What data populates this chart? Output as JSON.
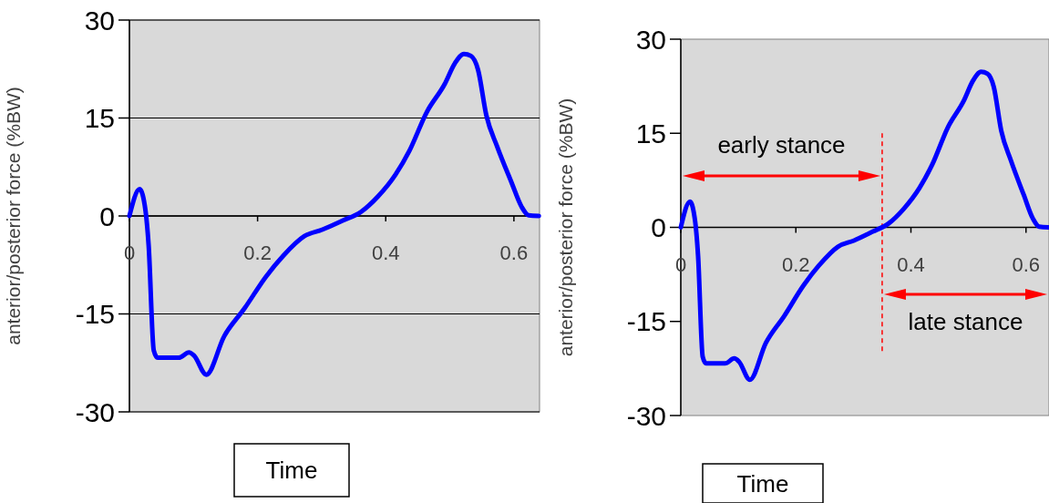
{
  "chart_data": [
    {
      "type": "line",
      "xlabel": "Time",
      "ylabel": "anterior/posterior force (%BW)",
      "x": [
        0,
        0.016,
        0.025,
        0.03,
        0.038,
        0.044,
        0.077,
        0.093,
        0.101,
        0.12,
        0.148,
        0.18,
        0.213,
        0.24,
        0.273,
        0.301,
        0.333,
        0.361,
        0.388,
        0.415,
        0.437,
        0.464,
        0.492,
        0.508,
        0.522,
        0.533,
        0.544,
        0.557,
        0.574,
        0.596,
        0.612,
        0.623,
        0.639
      ],
      "series": [
        {
          "color": "#0000ff",
          "values": [
            0,
            4.1,
            0.9,
            -4.5,
            -20.6,
            -21.7,
            -21.7,
            -20.9,
            -21.4,
            -24.3,
            -18.4,
            -14.1,
            -9.3,
            -6.1,
            -3.1,
            -2.1,
            -0.7,
            0.6,
            3.0,
            6.3,
            10.0,
            15.9,
            20.2,
            23.4,
            24.8,
            24.5,
            22.4,
            15.4,
            10.6,
            5.2,
            1.4,
            0.1,
            0
          ]
        }
      ],
      "xlim": [
        0,
        0.64
      ],
      "ylim": [
        -30,
        30
      ],
      "xticks": [
        0,
        0.2,
        0.4,
        0.6
      ],
      "yticks": [
        -30,
        -15,
        0,
        15,
        30
      ],
      "grid": "y",
      "marker": "none"
    },
    {
      "type": "line",
      "xlabel": "Time",
      "ylabel": "anterior/posterior force (%BW)",
      "x": [
        0,
        0.016,
        0.025,
        0.03,
        0.038,
        0.044,
        0.077,
        0.093,
        0.101,
        0.12,
        0.148,
        0.18,
        0.213,
        0.24,
        0.273,
        0.301,
        0.333,
        0.361,
        0.388,
        0.415,
        0.437,
        0.464,
        0.492,
        0.508,
        0.522,
        0.533,
        0.544,
        0.557,
        0.574,
        0.596,
        0.612,
        0.623,
        0.639
      ],
      "series": [
        {
          "color": "#0000ff",
          "values": [
            0,
            4.1,
            0.9,
            -4.5,
            -20.6,
            -21.7,
            -21.7,
            -20.9,
            -21.4,
            -24.3,
            -18.4,
            -14.1,
            -9.3,
            -6.1,
            -3.1,
            -2.1,
            -0.7,
            0.6,
            3.0,
            6.3,
            10.0,
            15.9,
            20.2,
            23.4,
            24.8,
            24.5,
            22.4,
            15.4,
            10.6,
            5.2,
            1.4,
            0.1,
            0
          ]
        }
      ],
      "xlim": [
        0,
        0.64
      ],
      "ylim": [
        -30,
        30
      ],
      "xticks": [
        0,
        0.2,
        0.4,
        0.6
      ],
      "yticks": [
        -30,
        -15,
        0,
        15,
        30
      ],
      "grid": false,
      "marker": "none",
      "ref_lines": [
        {
          "axis": "x",
          "value": 0.35,
          "color": "#ff0000",
          "line_style": "dashed"
        }
      ],
      "annotations": [
        "early stance",
        "late stance"
      ]
    }
  ]
}
